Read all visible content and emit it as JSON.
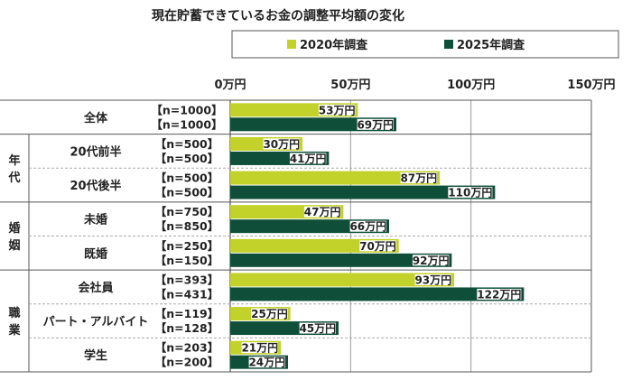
{
  "chart_data": {
    "type": "bar",
    "orientation": "horizontal",
    "title": "現在貯蓄できているお金の調整平均額の変化",
    "unit": "万円",
    "xlim": [
      0,
      150
    ],
    "ticks": [
      0,
      50,
      100,
      150
    ],
    "tick_labels": [
      "0万円",
      "50万円",
      "100万円",
      "150万円"
    ],
    "grid": true,
    "legend_position": "top-right",
    "colors": {
      "s2020": "#c3d22a",
      "s2025": "#0f4f3a"
    },
    "series": [
      {
        "name": "2020年調査",
        "color": "#c3d22a"
      },
      {
        "name": "2025年調査",
        "color": "#0f4f3a"
      }
    ],
    "groups": [
      {
        "label": "",
        "categories": [
          "全体"
        ]
      },
      {
        "label": "年代",
        "categories": [
          "20代前半",
          "20代後半"
        ]
      },
      {
        "label": "婚姻",
        "categories": [
          "未婚",
          "既婚"
        ]
      },
      {
        "label": "職業",
        "categories": [
          "会社員",
          "パート・アルバイト",
          "学生"
        ]
      }
    ],
    "categories": [
      "全体",
      "20代前半",
      "20代後半",
      "未婚",
      "既婚",
      "会社員",
      "パート・アルバイト",
      "学生"
    ],
    "values_2020": [
      53,
      30,
      87,
      47,
      70,
      93,
      25,
      21
    ],
    "values_2025": [
      69,
      41,
      110,
      66,
      92,
      122,
      45,
      24
    ],
    "n_2020": [
      "【n=1000】",
      "【n=500】",
      "【n=500】",
      "【n=750】",
      "【n=250】",
      "【n=393】",
      "【n=119】",
      "【n=203】"
    ],
    "n_2025": [
      "【n=1000】",
      "【n=500】",
      "【n=500】",
      "【n=850】",
      "【n=150】",
      "【n=431】",
      "【n=128】",
      "【n=200】"
    ],
    "value_labels_2020": [
      "53万円",
      "30万円",
      "87万円",
      "47万円",
      "70万円",
      "93万円",
      "25万円",
      "21万円"
    ],
    "value_labels_2025": [
      "69万円",
      "41万円",
      "110万円",
      "66万円",
      "92万円",
      "122万円",
      "45万円",
      "24万円"
    ]
  }
}
